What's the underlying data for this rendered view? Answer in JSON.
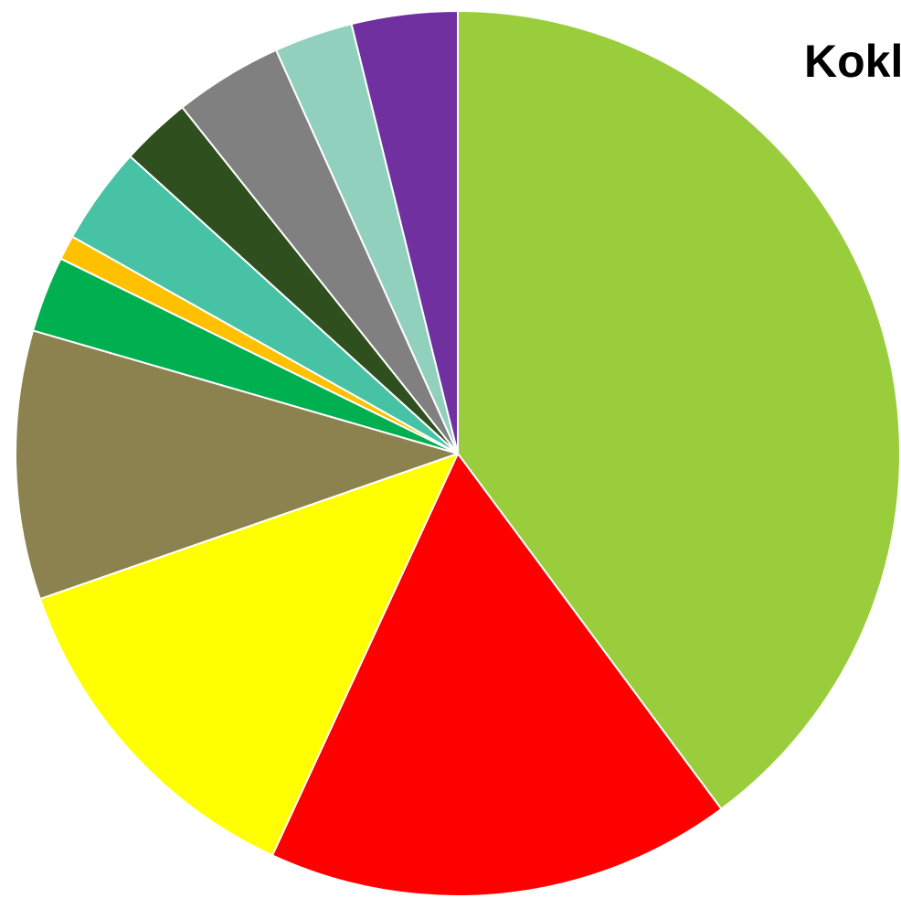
{
  "chart_data": {
    "type": "pie",
    "title": "Kokl",
    "slices": [
      {
        "value": 40.2,
        "color": "#9ACD3C"
      },
      {
        "value": 17.2,
        "color": "#FF0000"
      },
      {
        "value": 12.9,
        "color": "#FFFF00"
      },
      {
        "value": 9.9,
        "color": "#8B8250"
      },
      {
        "value": 2.8,
        "color": "#00B050"
      },
      {
        "value": 0.9,
        "color": "#FFC000"
      },
      {
        "value": 3.6,
        "color": "#48C2A5"
      },
      {
        "value": 2.6,
        "color": "#2F4F1E"
      },
      {
        "value": 4.0,
        "color": "#808080"
      },
      {
        "value": 2.9,
        "color": "#92D0BE"
      },
      {
        "value": 3.9,
        "color": "#7030A0"
      }
    ],
    "start_angle": "12 o'clock",
    "direction": "clockwise",
    "slice_border_color": "#ffffff"
  }
}
